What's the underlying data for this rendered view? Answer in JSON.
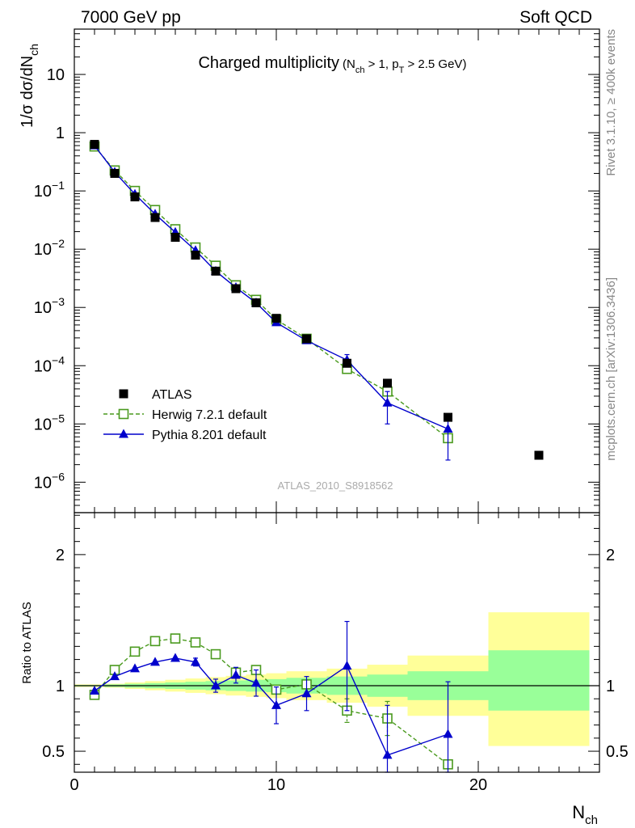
{
  "header": {
    "left": "7000 GeV pp",
    "right": "Soft QCD"
  },
  "side_labels": {
    "rivet": "Rivet 3.1.10, ≥ 400k events",
    "mcplots": "mcplots.cern.ch [arXiv:1306.3436]"
  },
  "colors": {
    "data": "#000000",
    "herwig": "#4a9a1e",
    "pythia": "#0000cc",
    "band_inner": "#99ff99",
    "band_outer": "#ffff99"
  },
  "chart_data": [
    {
      "type": "scatter",
      "title": "Charged multiplicity",
      "title_detail": {
        "open": "(N",
        "sub1": "ch",
        "mid": " > 1, p",
        "sub2": "T",
        "close": " > 2.5 GeV)"
      },
      "ylabel": {
        "main": "1/σ dσ/dN",
        "sub": "ch"
      },
      "yscale": "log",
      "ylim": [
        3e-07,
        60
      ],
      "xlim": [
        0,
        26
      ],
      "analysis_label": "ATLAS_2010_S8918562",
      "y_ticks": [
        {
          "value": 10,
          "label": "10",
          "exp": ""
        },
        {
          "value": 1,
          "label": "1",
          "exp": ""
        },
        {
          "value": 0.1,
          "label": "10",
          "exp": "−1"
        },
        {
          "value": 0.01,
          "label": "10",
          "exp": "−2"
        },
        {
          "value": 0.001,
          "label": "10",
          "exp": "−3"
        },
        {
          "value": 0.0001,
          "label": "10",
          "exp": "−4"
        },
        {
          "value": 1e-05,
          "label": "10",
          "exp": "−5"
        },
        {
          "value": 1e-06,
          "label": "10",
          "exp": "−6"
        }
      ],
      "legend": [
        {
          "key": "data",
          "label": "ATLAS"
        },
        {
          "key": "herwig",
          "label": "Herwig 7.2.1 default"
        },
        {
          "key": "pythia",
          "label": "Pythia 8.201 default"
        }
      ],
      "series": [
        {
          "name": "ATLAS",
          "key": "data",
          "x": [
            1,
            2,
            3,
            4,
            5,
            6,
            7,
            8,
            9,
            10,
            11.5,
            13.5,
            15.5,
            18.5,
            23
          ],
          "y": [
            0.63,
            0.2,
            0.079,
            0.035,
            0.016,
            0.0079,
            0.0042,
            0.0021,
            0.0012,
            0.00065,
            0.00029,
            0.00011,
            5e-05,
            1.3e-05,
            2.9e-06
          ]
        },
        {
          "name": "Herwig 7.2.1 default",
          "key": "herwig",
          "x": [
            1,
            2,
            3,
            4,
            5,
            6,
            7,
            8,
            9,
            10,
            11.5,
            13.5,
            15.5,
            18.5
          ],
          "y": [
            0.58,
            0.225,
            0.1,
            0.047,
            0.022,
            0.0107,
            0.0052,
            0.0024,
            0.00135,
            0.00062,
            0.00029,
            8.8e-05,
            3.6e-05,
            5.7e-06
          ]
        },
        {
          "name": "Pythia 8.201 default",
          "key": "pythia",
          "x": [
            1,
            2,
            3,
            4,
            5,
            6,
            7,
            8,
            9,
            10,
            11.5,
            13.5,
            15.5,
            18.5
          ],
          "y": [
            0.6,
            0.21,
            0.088,
            0.04,
            0.0195,
            0.0095,
            0.0042,
            0.0022,
            0.0012,
            0.00055,
            0.00027,
            0.000125,
            2.3e-05,
            8.2e-06
          ],
          "y_err": [
            0,
            0,
            0,
            0,
            0,
            0,
            0,
            0,
            0,
            0,
            3e-05,
            3e-05,
            1.3e-05,
            5.8e-06
          ]
        }
      ]
    },
    {
      "type": "scatter",
      "ylabel": "Ratio to ATLAS",
      "xlabel": {
        "main": "N",
        "sub": "ch"
      },
      "ylim": [
        0.34,
        2.32
      ],
      "xlim": [
        0,
        26
      ],
      "y_ticks": [
        0.5,
        1,
        2
      ],
      "x_ticks": [
        0,
        10,
        20
      ],
      "reference_line": 1,
      "bands": [
        {
          "x0": 0,
          "x1": 1.5,
          "inner": [
            0.995,
            1.005
          ],
          "outer": [
            0.99,
            1.01
          ]
        },
        {
          "x0": 1.5,
          "x1": 2.5,
          "inner": [
            0.99,
            1.01
          ],
          "outer": [
            0.985,
            1.015
          ]
        },
        {
          "x0": 2.5,
          "x1": 3.5,
          "inner": [
            0.985,
            1.015
          ],
          "outer": [
            0.975,
            1.025
          ]
        },
        {
          "x0": 3.5,
          "x1": 4.5,
          "inner": [
            0.98,
            1.02
          ],
          "outer": [
            0.965,
            1.035
          ]
        },
        {
          "x0": 4.5,
          "x1": 5.5,
          "inner": [
            0.975,
            1.025
          ],
          "outer": [
            0.955,
            1.045
          ]
        },
        {
          "x0": 5.5,
          "x1": 6.5,
          "inner": [
            0.97,
            1.03
          ],
          "outer": [
            0.945,
            1.055
          ]
        },
        {
          "x0": 6.5,
          "x1": 7.5,
          "inner": [
            0.965,
            1.035
          ],
          "outer": [
            0.935,
            1.065
          ]
        },
        {
          "x0": 7.5,
          "x1": 8.5,
          "inner": [
            0.96,
            1.04
          ],
          "outer": [
            0.925,
            1.075
          ]
        },
        {
          "x0": 8.5,
          "x1": 9.5,
          "inner": [
            0.955,
            1.045
          ],
          "outer": [
            0.915,
            1.085
          ]
        },
        {
          "x0": 9.5,
          "x1": 10.5,
          "inner": [
            0.95,
            1.05
          ],
          "outer": [
            0.905,
            1.095
          ]
        },
        {
          "x0": 10.5,
          "x1": 12.5,
          "inner": [
            0.94,
            1.06
          ],
          "outer": [
            0.89,
            1.11
          ]
        },
        {
          "x0": 12.5,
          "x1": 14.5,
          "inner": [
            0.93,
            1.07
          ],
          "outer": [
            0.87,
            1.13
          ]
        },
        {
          "x0": 14.5,
          "x1": 16.5,
          "inner": [
            0.915,
            1.085
          ],
          "outer": [
            0.84,
            1.16
          ]
        },
        {
          "x0": 16.5,
          "x1": 20.5,
          "inner": [
            0.89,
            1.11
          ],
          "outer": [
            0.77,
            1.23
          ]
        },
        {
          "x0": 20.5,
          "x1": 25.5,
          "inner": [
            0.81,
            1.27
          ],
          "outer": [
            0.54,
            1.56
          ]
        }
      ],
      "series": [
        {
          "name": "Herwig 7.2.1 default",
          "key": "herwig",
          "x": [
            1,
            2,
            3,
            4,
            5,
            6,
            7,
            8,
            9,
            10,
            11.5,
            13.5,
            15.5,
            18.5
          ],
          "y": [
            0.93,
            1.12,
            1.26,
            1.34,
            1.36,
            1.33,
            1.24,
            1.1,
            1.12,
            0.97,
            1.01,
            0.81,
            0.75,
            0.4
          ],
          "y_err": [
            0,
            0,
            0,
            0,
            0,
            0,
            0,
            0,
            0,
            0,
            0,
            0.09,
            0.13,
            0
          ]
        },
        {
          "name": "Pythia 8.201 default",
          "key": "pythia",
          "x": [
            1,
            2,
            3,
            4,
            5,
            6,
            7,
            8,
            9,
            10,
            11.5,
            13.5,
            15.5,
            18.5
          ],
          "y": [
            0.96,
            1.07,
            1.13,
            1.18,
            1.21,
            1.18,
            1.0,
            1.08,
            1.02,
            0.85,
            0.94,
            1.15,
            0.47,
            0.63
          ],
          "y_err": [
            0,
            0,
            0,
            0,
            0,
            0.03,
            0.05,
            0.06,
            0.1,
            0.14,
            0.13,
            0.34,
            0.38,
            0.4
          ]
        }
      ]
    }
  ]
}
